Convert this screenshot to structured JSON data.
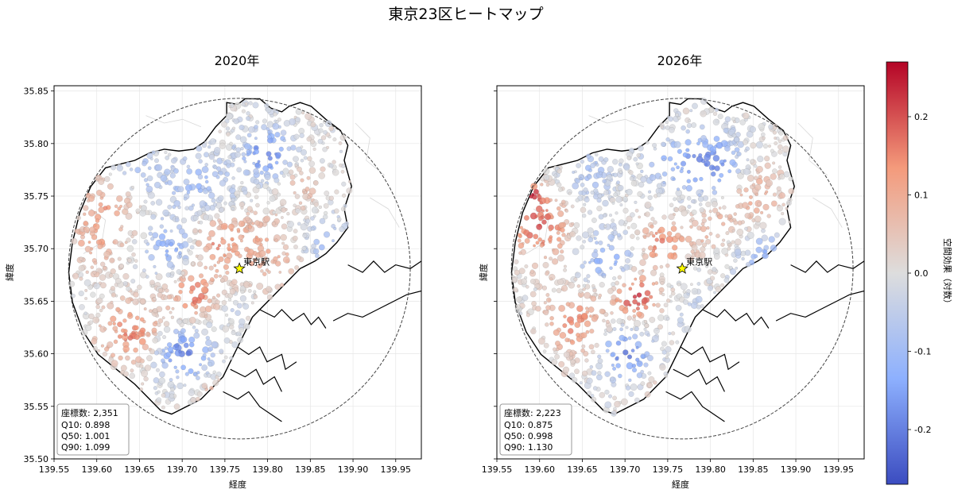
{
  "figure": {
    "title": "東京23区ヒートマップ",
    "colorbar": {
      "label": "空間効果（対数）",
      "min": -0.27,
      "max": 0.27,
      "ticks": [
        0.2,
        0.1,
        0.0,
        -0.1,
        -0.2
      ],
      "tick_labels": [
        "0.2",
        "0.1",
        "0.0",
        "-0.1",
        "-0.2"
      ],
      "colormap": "coolwarm",
      "colors": [
        "#3b4cc0",
        "#8db0fe",
        "#dddddd",
        "#f49a7b",
        "#b40426"
      ]
    }
  },
  "chart_data": [
    {
      "type": "scatter",
      "title": "2020年",
      "xlabel": "経度",
      "ylabel": "緯度",
      "xlim": [
        139.55,
        139.98
      ],
      "ylim": [
        35.5,
        35.855
      ],
      "x_ticks": [
        139.55,
        139.6,
        139.65,
        139.7,
        139.75,
        139.8,
        139.85,
        139.9,
        139.95
      ],
      "x_tick_labels": [
        "139.55",
        "139.60",
        "139.65",
        "139.70",
        "139.75",
        "139.80",
        "139.85",
        "139.90",
        "139.95"
      ],
      "y_ticks": [
        35.5,
        35.55,
        35.6,
        35.65,
        35.7,
        35.75,
        35.8,
        35.85
      ],
      "y_tick_labels": [
        "35.50",
        "35.55",
        "35.60",
        "35.65",
        "35.70",
        "35.75",
        "35.80",
        "35.85"
      ],
      "grid": true,
      "landmark": {
        "label": "東京駅",
        "lon": 139.767,
        "lat": 35.681
      },
      "circle": {
        "center_lon": 139.767,
        "center_lat": 35.681,
        "radius_lon": 0.2,
        "radius_lat": 0.162
      },
      "stats": [
        "座標数: 2,351",
        "Q10: 0.898",
        "Q50: 1.001",
        "Q90: 1.099"
      ],
      "stats_placement": "bottom-left",
      "clusters": [
        {
          "lon": 139.735,
          "lat": 35.705,
          "value": 0.14,
          "spread": 0.022
        },
        {
          "lon": 139.785,
          "lat": 35.705,
          "value": 0.09,
          "spread": 0.025
        },
        {
          "lon": 139.712,
          "lat": 35.655,
          "value": 0.17,
          "spread": 0.02
        },
        {
          "lon": 139.64,
          "lat": 35.62,
          "value": 0.16,
          "spread": 0.025
        },
        {
          "lon": 139.61,
          "lat": 35.74,
          "value": 0.12,
          "spread": 0.025
        },
        {
          "lon": 139.6,
          "lat": 35.7,
          "value": 0.1,
          "spread": 0.02
        },
        {
          "lon": 139.84,
          "lat": 35.76,
          "value": 0.07,
          "spread": 0.02
        },
        {
          "lon": 139.82,
          "lat": 35.68,
          "value": 0.06,
          "spread": 0.025
        },
        {
          "lon": 139.7,
          "lat": 35.6,
          "value": -0.2,
          "spread": 0.022
        },
        {
          "lon": 139.69,
          "lat": 35.7,
          "value": -0.14,
          "spread": 0.022
        },
        {
          "lon": 139.8,
          "lat": 35.79,
          "value": -0.2,
          "spread": 0.02
        },
        {
          "lon": 139.72,
          "lat": 35.76,
          "value": -0.1,
          "spread": 0.028
        },
        {
          "lon": 139.65,
          "lat": 35.77,
          "value": -0.08,
          "spread": 0.02
        },
        {
          "lon": 139.87,
          "lat": 35.7,
          "value": -0.09,
          "spread": 0.025
        },
        {
          "lon": 139.755,
          "lat": 35.64,
          "value": -0.04,
          "spread": 0.015
        },
        {
          "lon": 139.74,
          "lat": 35.56,
          "value": 0.09,
          "spread": 0.015
        }
      ]
    },
    {
      "type": "scatter",
      "title": "2026年",
      "xlabel": "経度",
      "ylabel": "緯度",
      "xlim": [
        139.55,
        139.98
      ],
      "ylim": [
        35.5,
        35.855
      ],
      "x_ticks": [
        139.55,
        139.6,
        139.65,
        139.7,
        139.75,
        139.8,
        139.85,
        139.9,
        139.95
      ],
      "x_tick_labels": [
        "139.55",
        "139.60",
        "139.65",
        "139.70",
        "139.75",
        "139.80",
        "139.85",
        "139.90",
        "139.95"
      ],
      "y_ticks": [
        35.5,
        35.55,
        35.6,
        35.65,
        35.7,
        35.75,
        35.8,
        35.85
      ],
      "y_tick_labels": [
        "35.50",
        "35.55",
        "35.60",
        "35.65",
        "35.70",
        "35.75",
        "35.80",
        "35.85"
      ],
      "grid": true,
      "landmark": {
        "label": "東京駅",
        "lon": 139.767,
        "lat": 35.681
      },
      "circle": {
        "center_lon": 139.767,
        "center_lat": 35.681,
        "radius_lon": 0.2,
        "radius_lat": 0.162
      },
      "stats": [
        "座標数: 2,223",
        "Q10: 0.875",
        "Q50: 0.998",
        "Q90: 1.130"
      ],
      "stats_placement": "bottom-left",
      "clusters": [
        {
          "lon": 139.745,
          "lat": 35.705,
          "value": 0.17,
          "spread": 0.018
        },
        {
          "lon": 139.712,
          "lat": 35.655,
          "value": 0.22,
          "spread": 0.018
        },
        {
          "lon": 139.6,
          "lat": 35.72,
          "value": 0.18,
          "spread": 0.025
        },
        {
          "lon": 139.59,
          "lat": 35.75,
          "value": 0.2,
          "spread": 0.012
        },
        {
          "lon": 139.64,
          "lat": 35.63,
          "value": 0.15,
          "spread": 0.025
        },
        {
          "lon": 139.85,
          "lat": 35.75,
          "value": 0.1,
          "spread": 0.025
        },
        {
          "lon": 139.8,
          "lat": 35.72,
          "value": 0.08,
          "spread": 0.02
        },
        {
          "lon": 139.745,
          "lat": 35.555,
          "value": 0.12,
          "spread": 0.015
        },
        {
          "lon": 139.7,
          "lat": 35.6,
          "value": -0.21,
          "spread": 0.02
        },
        {
          "lon": 139.68,
          "lat": 35.69,
          "value": -0.13,
          "spread": 0.022
        },
        {
          "lon": 139.8,
          "lat": 35.78,
          "value": -0.2,
          "spread": 0.025
        },
        {
          "lon": 139.75,
          "lat": 35.78,
          "value": -0.1,
          "spread": 0.02
        },
        {
          "lon": 139.66,
          "lat": 35.77,
          "value": -0.09,
          "spread": 0.02
        },
        {
          "lon": 139.87,
          "lat": 35.69,
          "value": -0.12,
          "spread": 0.025
        },
        {
          "lon": 139.78,
          "lat": 35.64,
          "value": -0.05,
          "spread": 0.015
        }
      ]
    }
  ]
}
